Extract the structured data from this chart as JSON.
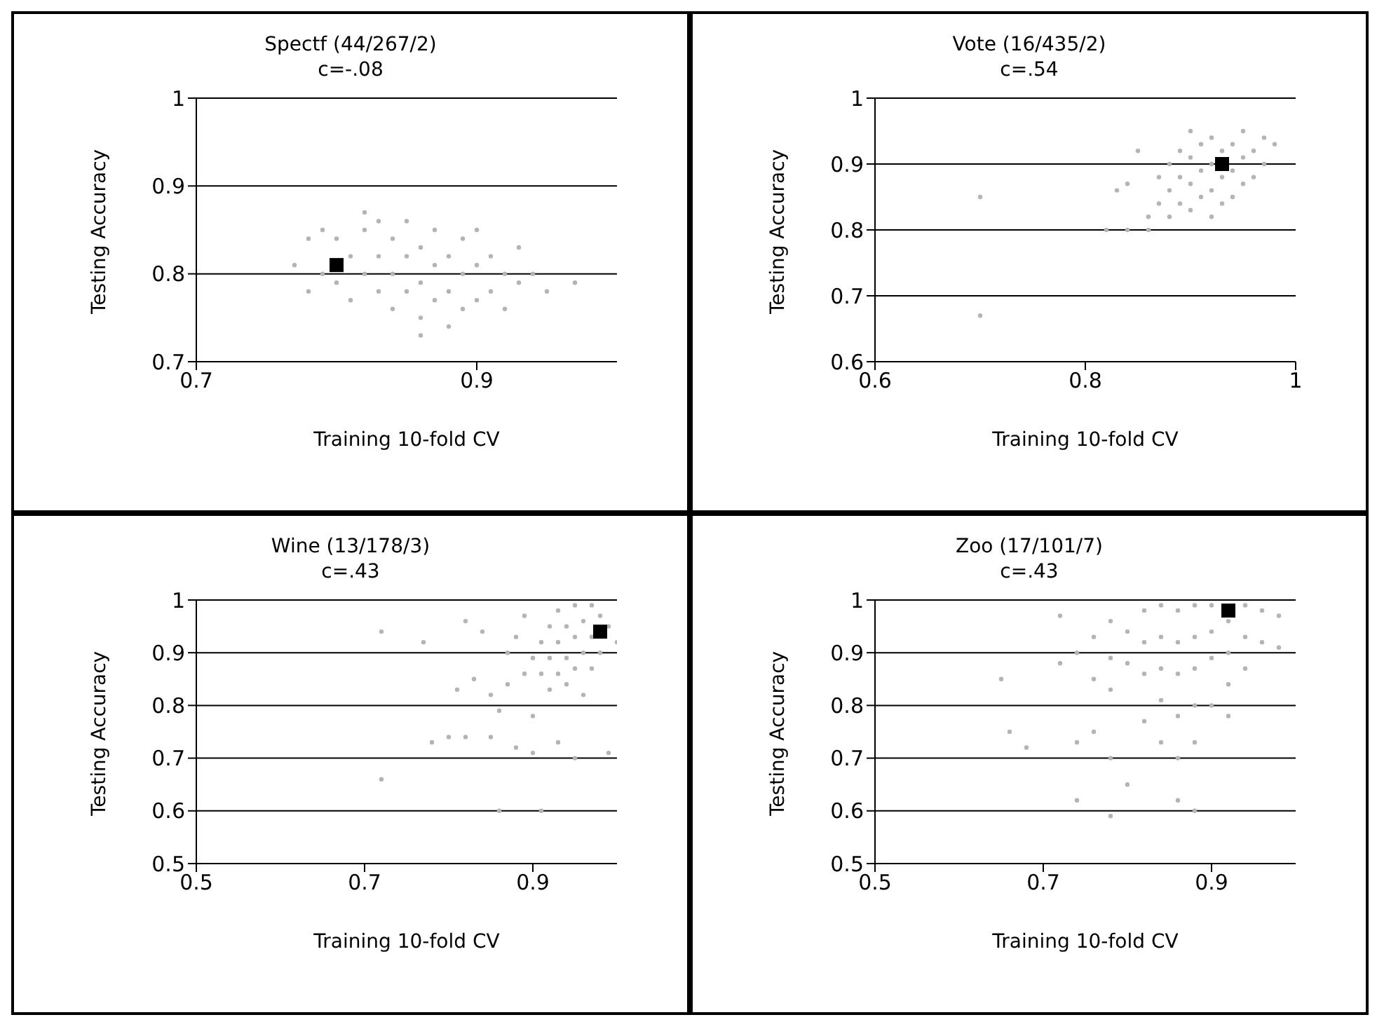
{
  "chart_data": [
    {
      "type": "scatter",
      "title": "Spectf (44/267/2)",
      "subtitle": "c=-.08",
      "xlabel": "Training 10-fold CV",
      "ylabel": "Testing Accuracy",
      "xlim": [
        0.7,
        1.0
      ],
      "xticks": [
        0.7,
        0.9
      ],
      "ylim": [
        0.7,
        1
      ],
      "yticks": [
        0.7,
        0.8,
        0.9,
        1
      ],
      "grid": "y",
      "series": [
        {
          "color": "#b4b4b4",
          "marker": "circle",
          "x": [
            0.77,
            0.78,
            0.78,
            0.79,
            0.79,
            0.8,
            0.8,
            0.81,
            0.81,
            0.82,
            0.82,
            0.83,
            0.83,
            0.83,
            0.84,
            0.84,
            0.84,
            0.85,
            0.85,
            0.85,
            0.86,
            0.86,
            0.86,
            0.87,
            0.87,
            0.87,
            0.88,
            0.88,
            0.88,
            0.89,
            0.89,
            0.89,
            0.9,
            0.9,
            0.9,
            0.91,
            0.91,
            0.92,
            0.92,
            0.93,
            0.93,
            0.94,
            0.95,
            0.97,
            0.86,
            0.82
          ],
          "values": [
            0.81,
            0.78,
            0.84,
            0.8,
            0.85,
            0.79,
            0.84,
            0.77,
            0.82,
            0.8,
            0.85,
            0.78,
            0.82,
            0.86,
            0.76,
            0.8,
            0.84,
            0.78,
            0.82,
            0.86,
            0.75,
            0.79,
            0.83,
            0.77,
            0.81,
            0.85,
            0.74,
            0.78,
            0.82,
            0.76,
            0.8,
            0.84,
            0.77,
            0.81,
            0.85,
            0.78,
            0.82,
            0.76,
            0.8,
            0.79,
            0.83,
            0.8,
            0.78,
            0.79,
            0.73,
            0.87
          ]
        },
        {
          "color": "#000000",
          "marker": "square",
          "x": [
            0.8
          ],
          "values": [
            0.81
          ]
        }
      ]
    },
    {
      "type": "scatter",
      "title": "Vote (16/435/2)",
      "subtitle": "c=.54",
      "xlabel": "Training 10-fold CV",
      "ylabel": "Testing Accuracy",
      "xlim": [
        0.6,
        1
      ],
      "xticks": [
        0.6,
        0.8,
        1
      ],
      "ylim": [
        0.6,
        1
      ],
      "yticks": [
        0.6,
        0.7,
        0.8,
        0.9,
        1
      ],
      "grid": "y",
      "series": [
        {
          "color": "#b4b4b4",
          "marker": "circle",
          "x": [
            0.7,
            0.7,
            0.82,
            0.84,
            0.86,
            0.83,
            0.84,
            0.85,
            0.87,
            0.87,
            0.88,
            0.88,
            0.88,
            0.89,
            0.89,
            0.89,
            0.9,
            0.9,
            0.9,
            0.91,
            0.91,
            0.91,
            0.92,
            0.92,
            0.92,
            0.92,
            0.93,
            0.93,
            0.93,
            0.94,
            0.94,
            0.94,
            0.95,
            0.95,
            0.95,
            0.96,
            0.96,
            0.97,
            0.97,
            0.98,
            0.9,
            0.86
          ],
          "values": [
            0.85,
            0.67,
            0.8,
            0.8,
            0.8,
            0.86,
            0.87,
            0.92,
            0.84,
            0.88,
            0.82,
            0.86,
            0.9,
            0.84,
            0.88,
            0.92,
            0.83,
            0.87,
            0.91,
            0.85,
            0.89,
            0.93,
            0.82,
            0.86,
            0.9,
            0.94,
            0.84,
            0.88,
            0.92,
            0.85,
            0.89,
            0.93,
            0.87,
            0.91,
            0.95,
            0.88,
            0.92,
            0.9,
            0.94,
            0.93,
            0.95,
            0.82
          ]
        },
        {
          "color": "#000000",
          "marker": "square",
          "x": [
            0.93
          ],
          "values": [
            0.9
          ]
        }
      ]
    },
    {
      "type": "scatter",
      "title": "Wine (13/178/3)",
      "subtitle": "c=.43",
      "xlabel": "Training 10-fold CV",
      "ylabel": "Testing Accuracy",
      "xlim": [
        0.5,
        1.0
      ],
      "xticks": [
        0.5,
        0.7,
        0.9
      ],
      "ylim": [
        0.5,
        1
      ],
      "yticks": [
        0.5,
        0.6,
        0.7,
        0.8,
        0.9,
        1
      ],
      "grid": "y",
      "series": [
        {
          "color": "#b4b4b4",
          "marker": "circle",
          "x": [
            0.72,
            0.72,
            0.77,
            0.78,
            0.8,
            0.81,
            0.82,
            0.82,
            0.83,
            0.84,
            0.85,
            0.85,
            0.86,
            0.86,
            0.87,
            0.87,
            0.88,
            0.88,
            0.89,
            0.89,
            0.9,
            0.9,
            0.9,
            0.91,
            0.91,
            0.91,
            0.92,
            0.92,
            0.92,
            0.93,
            0.93,
            0.93,
            0.93,
            0.94,
            0.94,
            0.94,
            0.95,
            0.95,
            0.95,
            0.95,
            0.96,
            0.96,
            0.96,
            0.97,
            0.97,
            0.97,
            0.98,
            0.98,
            0.99,
            0.99,
            1.0
          ],
          "values": [
            0.94,
            0.66,
            0.92,
            0.73,
            0.74,
            0.83,
            0.96,
            0.74,
            0.85,
            0.94,
            0.74,
            0.82,
            0.79,
            0.6,
            0.9,
            0.84,
            0.72,
            0.93,
            0.86,
            0.97,
            0.89,
            0.78,
            0.71,
            0.92,
            0.86,
            0.6,
            0.95,
            0.89,
            0.83,
            0.98,
            0.92,
            0.86,
            0.73,
            0.95,
            0.89,
            0.84,
            0.99,
            0.93,
            0.87,
            0.7,
            0.96,
            0.9,
            0.82,
            0.99,
            0.93,
            0.87,
            0.97,
            0.9,
            0.95,
            0.71,
            0.92
          ]
        },
        {
          "color": "#000000",
          "marker": "square",
          "x": [
            0.98
          ],
          "values": [
            0.94
          ]
        }
      ]
    },
    {
      "type": "scatter",
      "title": "Zoo (17/101/7)",
      "subtitle": "c=.43",
      "xlabel": "Training 10-fold CV",
      "ylabel": "Testing Accuracy",
      "xlim": [
        0.5,
        1.0
      ],
      "xticks": [
        0.5,
        0.7,
        0.9
      ],
      "ylim": [
        0.5,
        1
      ],
      "yticks": [
        0.5,
        0.6,
        0.7,
        0.8,
        0.9,
        1
      ],
      "grid": "y",
      "series": [
        {
          "color": "#b4b4b4",
          "marker": "circle",
          "x": [
            0.65,
            0.66,
            0.68,
            0.72,
            0.72,
            0.74,
            0.74,
            0.74,
            0.76,
            0.76,
            0.76,
            0.78,
            0.78,
            0.78,
            0.78,
            0.78,
            0.8,
            0.8,
            0.8,
            0.82,
            0.82,
            0.82,
            0.82,
            0.84,
            0.84,
            0.84,
            0.84,
            0.84,
            0.86,
            0.86,
            0.86,
            0.86,
            0.86,
            0.86,
            0.88,
            0.88,
            0.88,
            0.88,
            0.88,
            0.88,
            0.9,
            0.9,
            0.9,
            0.9,
            0.92,
            0.92,
            0.92,
            0.92,
            0.94,
            0.94,
            0.94,
            0.96,
            0.96,
            0.98,
            0.98
          ],
          "values": [
            0.85,
            0.75,
            0.72,
            0.88,
            0.97,
            0.9,
            0.73,
            0.62,
            0.93,
            0.85,
            0.75,
            0.96,
            0.89,
            0.83,
            0.7,
            0.59,
            0.94,
            0.88,
            0.65,
            0.98,
            0.92,
            0.86,
            0.77,
            0.99,
            0.93,
            0.87,
            0.81,
            0.73,
            0.98,
            0.92,
            0.86,
            0.78,
            0.7,
            0.62,
            0.99,
            0.93,
            0.87,
            0.8,
            0.73,
            0.6,
            0.99,
            0.94,
            0.89,
            0.8,
            0.96,
            0.9,
            0.84,
            0.78,
            0.99,
            0.93,
            0.87,
            0.98,
            0.92,
            0.97,
            0.91
          ]
        },
        {
          "color": "#000000",
          "marker": "square",
          "x": [
            0.92
          ],
          "values": [
            0.98
          ]
        }
      ]
    }
  ]
}
